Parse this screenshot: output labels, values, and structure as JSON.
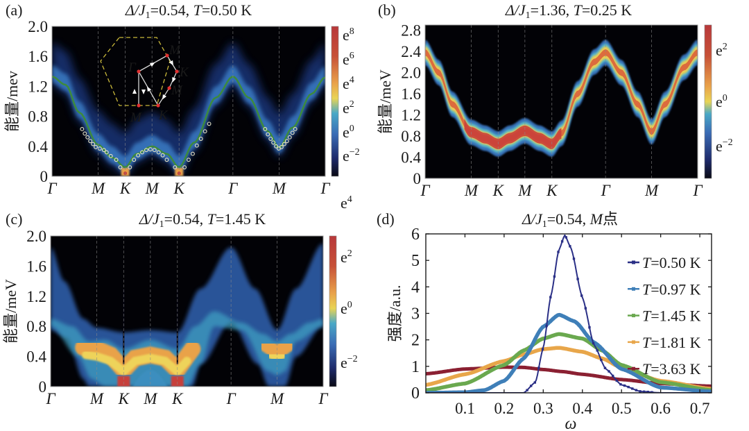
{
  "panels": {
    "a": {
      "letter": "(a)",
      "title_prefix": "Δ/J",
      "title_sub": "1",
      "title_value": "=0.54, ",
      "title_T": "T",
      "title_Tval": "=0.50 K"
    },
    "b": {
      "letter": "(b)",
      "title_prefix": "Δ/J",
      "title_sub": "1",
      "title_value": "=1.36, ",
      "title_T": "T",
      "title_Tval": "=0.25 K"
    },
    "c": {
      "letter": "(c)",
      "title_prefix": "Δ/J",
      "title_sub": "1",
      "title_value": "=0.54, ",
      "title_T": "T",
      "title_Tval": "=1.45 K"
    },
    "d": {
      "letter": "(d)",
      "title_prefix": "Δ/J",
      "title_sub": "1",
      "title_value": "=0.54, ",
      "title_T": "M",
      "title_Tval": "点"
    }
  },
  "chart_data": [
    {
      "id": "a",
      "type": "heatmap",
      "title": "Δ/J1=0.54, T=0.50 K",
      "ylabel": "能量/mev",
      "ylim": [
        0,
        2.0
      ],
      "yticks": [
        "0",
        "0.4",
        "0.8",
        "1.2",
        "1.6",
        "2.0"
      ],
      "ytick_values": [
        0,
        0.4,
        0.8,
        1.2,
        1.6,
        2.0
      ],
      "kpath_labels": [
        "Γ",
        "M",
        "K",
        "M",
        "K",
        "Γ",
        "M",
        "Γ"
      ],
      "kpath_positions": [
        0,
        0.169,
        0.268,
        0.366,
        0.465,
        0.662,
        0.831,
        1.0
      ],
      "colorbar": {
        "labels": [
          "e−2",
          "e0",
          "e2",
          "e4",
          "e6",
          "e8"
        ],
        "range_exp": [
          -3,
          8.5
        ]
      },
      "dispersion_line_color": "#3d8a3d",
      "dispersion_curve": [
        [
          0,
          1.33
        ],
        [
          0.05,
          1.22
        ],
        [
          0.1,
          0.85
        ],
        [
          0.169,
          0.42
        ],
        [
          0.22,
          0.25
        ],
        [
          0.268,
          0.12
        ],
        [
          0.31,
          0.3
        ],
        [
          0.366,
          0.4
        ],
        [
          0.42,
          0.3
        ],
        [
          0.465,
          0.12
        ],
        [
          0.52,
          0.45
        ],
        [
          0.6,
          1.05
        ],
        [
          0.662,
          1.33
        ],
        [
          0.72,
          1.05
        ],
        [
          0.79,
          0.6
        ],
        [
          0.831,
          0.38
        ],
        [
          0.88,
          0.65
        ],
        [
          0.95,
          1.1
        ],
        [
          1.0,
          1.32
        ]
      ],
      "data_points": [
        [
          0.11,
          0.63
        ],
        [
          0.12,
          0.57
        ],
        [
          0.13,
          0.52
        ],
        [
          0.14,
          0.47
        ],
        [
          0.15,
          0.43
        ],
        [
          0.16,
          0.39
        ],
        [
          0.175,
          0.37
        ],
        [
          0.19,
          0.35
        ],
        [
          0.2,
          0.32
        ],
        [
          0.215,
          0.27
        ],
        [
          0.235,
          0.22
        ],
        [
          0.25,
          0.12
        ],
        [
          0.285,
          0.12
        ],
        [
          0.3,
          0.22
        ],
        [
          0.315,
          0.28
        ],
        [
          0.33,
          0.32
        ],
        [
          0.345,
          0.35
        ],
        [
          0.36,
          0.36
        ],
        [
          0.375,
          0.35
        ],
        [
          0.39,
          0.32
        ],
        [
          0.405,
          0.28
        ],
        [
          0.42,
          0.22
        ],
        [
          0.45,
          0.12
        ],
        [
          0.485,
          0.12
        ],
        [
          0.5,
          0.22
        ],
        [
          0.515,
          0.3
        ],
        [
          0.53,
          0.41
        ],
        [
          0.545,
          0.5
        ],
        [
          0.56,
          0.6
        ],
        [
          0.575,
          0.7
        ],
        [
          0.78,
          0.63
        ],
        [
          0.79,
          0.56
        ],
        [
          0.8,
          0.5
        ],
        [
          0.81,
          0.45
        ],
        [
          0.82,
          0.4
        ],
        [
          0.83,
          0.37
        ],
        [
          0.84,
          0.39
        ],
        [
          0.85,
          0.43
        ],
        [
          0.86,
          0.47
        ],
        [
          0.87,
          0.52
        ],
        [
          0.88,
          0.58
        ],
        [
          0.89,
          0.63
        ]
      ],
      "inset": {
        "labels": [
          "Γ",
          "M",
          "K",
          "M",
          "K",
          "M"
        ]
      }
    },
    {
      "id": "b",
      "type": "heatmap",
      "title": "Δ/J1=1.36, T=0.25 K",
      "ylabel": "能量/meV",
      "ylim": [
        0,
        2.9
      ],
      "yticks": [
        "0",
        "0.4",
        "0.8",
        "1.2",
        "1.6",
        "2.0",
        "2.4",
        "2.8"
      ],
      "ytick_values": [
        0,
        0.4,
        0.8,
        1.2,
        1.6,
        2.0,
        2.4,
        2.8
      ],
      "kpath_labels": [
        "Γ",
        "M",
        "K",
        "M",
        "K",
        "Γ",
        "M",
        "Γ"
      ],
      "kpath_positions": [
        0,
        0.169,
        0.268,
        0.366,
        0.465,
        0.662,
        0.831,
        1.0
      ],
      "colorbar": {
        "labels": [
          "e−2",
          "e0",
          "e2"
        ],
        "range_exp": [
          -3,
          2.8
        ]
      },
      "band_center": [
        [
          0,
          2.38
        ],
        [
          0.05,
          2.0
        ],
        [
          0.1,
          1.4
        ],
        [
          0.169,
          0.87
        ],
        [
          0.22,
          0.76
        ],
        [
          0.268,
          0.65
        ],
        [
          0.31,
          0.76
        ],
        [
          0.366,
          0.9
        ],
        [
          0.42,
          0.76
        ],
        [
          0.465,
          0.65
        ],
        [
          0.5,
          0.85
        ],
        [
          0.56,
          1.6
        ],
        [
          0.62,
          2.2
        ],
        [
          0.662,
          2.38
        ],
        [
          0.72,
          2.0
        ],
        [
          0.78,
          1.4
        ],
        [
          0.831,
          0.88
        ],
        [
          0.88,
          1.4
        ],
        [
          0.95,
          2.1
        ],
        [
          1.0,
          2.38
        ]
      ]
    },
    {
      "id": "c",
      "type": "heatmap",
      "title": "Δ/J1=0.54, T=1.45 K",
      "ylabel": "能量/meV",
      "ylim": [
        0,
        2.0
      ],
      "yticks": [
        "0",
        "0.4",
        "0.8",
        "1.2",
        "1.6",
        "2.0"
      ],
      "ytick_values": [
        0,
        0.4,
        0.8,
        1.2,
        1.6,
        2.0
      ],
      "kpath_labels": [
        "Γ",
        "M",
        "K",
        "M",
        "K",
        "Γ",
        "M",
        "Γ"
      ],
      "kpath_positions": [
        0,
        0.169,
        0.268,
        0.366,
        0.465,
        0.662,
        0.831,
        1.0
      ],
      "colorbar": {
        "labels": [
          "e−2",
          "e0",
          "e2",
          "e4"
        ],
        "range_exp": [
          -3,
          4.6
        ]
      }
    },
    {
      "id": "d",
      "type": "line",
      "title": "Δ/J1=0.54, M点",
      "xlabel": "ω",
      "ylabel": "强度/a.u.",
      "xlim": [
        0,
        0.73
      ],
      "ylim": [
        0,
        6
      ],
      "xticks": [
        "0.1",
        "0.2",
        "0.3",
        "0.4",
        "0.5",
        "0.6",
        "0.7"
      ],
      "xtick_values": [
        0.1,
        0.2,
        0.3,
        0.4,
        0.5,
        0.6,
        0.7
      ],
      "yticks": [
        "0",
        "1",
        "2",
        "3",
        "4",
        "5",
        "6"
      ],
      "ytick_values": [
        0,
        1,
        2,
        3,
        4,
        5,
        6
      ],
      "legend_position": "top-right",
      "series": [
        {
          "name": "T=0.50 K",
          "T": "0.50 K",
          "color": "#2a2f86",
          "peak_x": 0.355,
          "peak_y": 5.95,
          "width": 0.045,
          "floor": 0.0,
          "cutoff_low": 0.26
        },
        {
          "name": "T=0.97 K",
          "T": "0.97 K",
          "color": "#3f7fb8",
          "peak_x": 0.34,
          "peak_y": 2.95,
          "width": 0.08,
          "floor": 0.0
        },
        {
          "name": "T=1.45 K",
          "T": "1.45 K",
          "color": "#6aa84f",
          "peak_x": 0.34,
          "peak_y": 2.22,
          "width": 0.115,
          "floor": 0.0
        },
        {
          "name": "T=1.81 K",
          "T": "1.81 K",
          "color": "#e8a64a",
          "peak_x": 0.34,
          "peak_y": 1.7,
          "width": 0.14,
          "floor": 0.0
        },
        {
          "name": "T=3.63 K",
          "T": "3.63 K",
          "color": "#8b2032",
          "peak_x": 0.22,
          "peak_y": 0.97,
          "width": 0.3,
          "floor": 0.0
        }
      ],
      "sample_values": {
        "T=0.50 K": [
          [
            0.25,
            0
          ],
          [
            0.28,
            0.4
          ],
          [
            0.3,
            1.7
          ],
          [
            0.32,
            3.7
          ],
          [
            0.34,
            5.4
          ],
          [
            0.355,
            5.95
          ],
          [
            0.37,
            5.5
          ],
          [
            0.4,
            3.6
          ],
          [
            0.43,
            1.8
          ],
          [
            0.46,
            0.9
          ],
          [
            0.5,
            0.3
          ],
          [
            0.55,
            0.05
          ],
          [
            0.6,
            0
          ]
        ],
        "T=0.97 K": [
          [
            0,
            0
          ],
          [
            0.1,
            0.02
          ],
          [
            0.15,
            0.1
          ],
          [
            0.2,
            0.45
          ],
          [
            0.25,
            1.3
          ],
          [
            0.3,
            2.5
          ],
          [
            0.34,
            2.95
          ],
          [
            0.38,
            2.7
          ],
          [
            0.43,
            1.9
          ],
          [
            0.5,
            0.9
          ],
          [
            0.6,
            0.2
          ],
          [
            0.73,
            0.05
          ]
        ],
        "T=1.45 K": [
          [
            0,
            0.1
          ],
          [
            0.1,
            0.35
          ],
          [
            0.2,
            1.05
          ],
          [
            0.25,
            1.6
          ],
          [
            0.3,
            2.05
          ],
          [
            0.34,
            2.22
          ],
          [
            0.4,
            2.05
          ],
          [
            0.45,
            1.6
          ],
          [
            0.5,
            1.05
          ],
          [
            0.6,
            0.4
          ],
          [
            0.73,
            0.1
          ]
        ],
        "T=1.81 K": [
          [
            0,
            0.3
          ],
          [
            0.1,
            0.7
          ],
          [
            0.2,
            1.2
          ],
          [
            0.25,
            1.45
          ],
          [
            0.3,
            1.65
          ],
          [
            0.34,
            1.7
          ],
          [
            0.4,
            1.55
          ],
          [
            0.45,
            1.3
          ],
          [
            0.5,
            0.95
          ],
          [
            0.6,
            0.45
          ],
          [
            0.73,
            0.15
          ]
        ],
        "T=3.63 K": [
          [
            0,
            0.72
          ],
          [
            0.1,
            0.9
          ],
          [
            0.2,
            0.97
          ],
          [
            0.25,
            0.96
          ],
          [
            0.3,
            0.88
          ],
          [
            0.35,
            0.8
          ],
          [
            0.4,
            0.7
          ],
          [
            0.5,
            0.5
          ],
          [
            0.6,
            0.35
          ],
          [
            0.73,
            0.25
          ]
        ]
      }
    }
  ]
}
